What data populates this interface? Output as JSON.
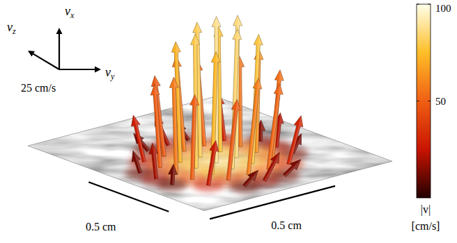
{
  "chart_data": {
    "type": "quiver3d",
    "ylim": [
      0,
      1.1
    ],
    "zlim": [
      0,
      0.75
    ],
    "vectors": {
      "y": [
        0.36,
        0.36,
        0.36,
        0.46,
        0.46,
        0.46,
        0.46,
        0.46,
        0.56,
        0.56,
        0.56,
        0.56,
        0.56,
        0.56,
        0.56,
        0.66,
        0.66,
        0.66,
        0.66,
        0.66,
        0.66,
        0.66,
        0.76,
        0.76,
        0.76,
        0.76,
        0.76,
        0.76,
        0.76,
        0.86,
        0.86,
        0.86,
        0.86,
        0.86,
        0.96,
        0.96,
        0.96
      ],
      "z": [
        0.25,
        0.33,
        0.41,
        0.17,
        0.25,
        0.33,
        0.41,
        0.49,
        0.09,
        0.17,
        0.25,
        0.33,
        0.41,
        0.49,
        0.57,
        0.09,
        0.17,
        0.25,
        0.33,
        0.41,
        0.49,
        0.57,
        0.09,
        0.17,
        0.25,
        0.33,
        0.41,
        0.49,
        0.57,
        0.17,
        0.25,
        0.33,
        0.41,
        0.49,
        0.25,
        0.33,
        0.41
      ],
      "vx": [
        10,
        18,
        11,
        27,
        48,
        57,
        52,
        29,
        12,
        49,
        72,
        81,
        76,
        55,
        14,
        20,
        57,
        80,
        88,
        86,
        63,
        22,
        11,
        50,
        73,
        84,
        78,
        54,
        13,
        26,
        48,
        58,
        52,
        30,
        9,
        17,
        10
      ],
      "vy": [
        -8,
        -8,
        -8,
        -5,
        -5,
        -5,
        -5,
        -5,
        -2,
        -2,
        -2,
        -2,
        -2,
        -2,
        -2,
        0,
        0,
        0,
        0,
        0,
        0,
        0,
        3,
        3,
        3,
        3,
        3,
        3,
        3,
        6,
        6,
        6,
        6,
        6,
        9,
        9,
        9
      ],
      "vz": [
        1,
        0,
        -1,
        2,
        1,
        0,
        -1,
        -2,
        3,
        2,
        1,
        0,
        -1,
        -2,
        -3,
        3,
        2,
        1,
        0,
        -1,
        -2,
        -3,
        3,
        2,
        1,
        0,
        -1,
        -2,
        -3,
        2,
        1,
        0,
        -1,
        -2,
        1,
        0,
        -1
      ]
    },
    "triad": {
      "labels": [
        {
          "symbol": "v",
          "sub": "x"
        },
        {
          "symbol": "v",
          "sub": "y"
        },
        {
          "symbol": "v",
          "sub": "z"
        }
      ],
      "reference": {
        "value": 25,
        "label": "25 cm/s"
      }
    },
    "scale_bars": [
      {
        "value": 0.5,
        "label": "0.5 cm",
        "axis": "y"
      },
      {
        "value": 0.5,
        "label": "0.5 cm",
        "axis": "z"
      }
    ],
    "colorbar": {
      "range": [
        0,
        100
      ],
      "ticks": [
        50,
        100
      ],
      "label": [
        "|v|",
        "[cm/s]"
      ]
    }
  }
}
